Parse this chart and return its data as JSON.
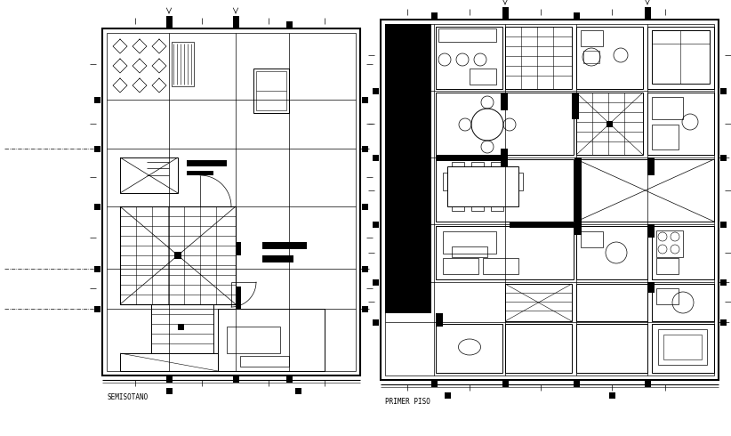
{
  "bg_color": "#ffffff",
  "line_color": "#000000",
  "title_left": "SEMISOTANO",
  "title_right": "PRIMER PISO",
  "fig_width": 8.22,
  "fig_height": 4.9,
  "dpi": 100
}
